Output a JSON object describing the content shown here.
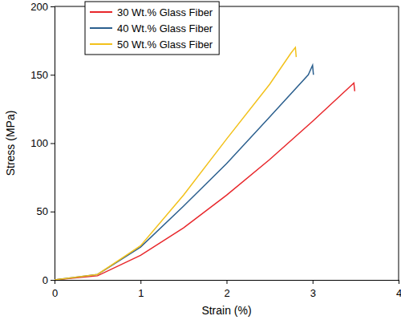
{
  "chart_data": {
    "type": "line",
    "x_label": "Strain (%)",
    "y_label": "Stress (MPa)",
    "xlim": [
      0,
      4
    ],
    "xticks": [
      0,
      1,
      2,
      3,
      4
    ],
    "ylim": [
      0,
      200
    ],
    "yticks": [
      0,
      50,
      100,
      150,
      200
    ],
    "legend": "upper left",
    "series": [
      {
        "name": "30 Wt.% Glass Fiber",
        "color": "#e8272b",
        "x": [
          0,
          0.5,
          1,
          1.5,
          2,
          2.5,
          3,
          3.48,
          3.49
        ],
        "values": [
          0,
          3,
          18,
          38,
          62,
          88,
          116,
          144,
          138
        ]
      },
      {
        "name": "40 Wt.% Glass Fiber",
        "color": "#2b5f8e",
        "x": [
          0,
          0.5,
          1,
          1.5,
          2,
          2.5,
          2.95,
          3.0,
          3.01
        ],
        "values": [
          0,
          4,
          24,
          54,
          85,
          119,
          150,
          157,
          150
        ]
      },
      {
        "name": "50 Wt.% Glass Fiber",
        "color": "#f2c11b",
        "x": [
          0,
          0.5,
          1,
          1.5,
          2,
          2.5,
          2.75,
          2.8,
          2.81
        ],
        "values": [
          0,
          4,
          25,
          62,
          103,
          143,
          166,
          170,
          163
        ]
      }
    ]
  }
}
